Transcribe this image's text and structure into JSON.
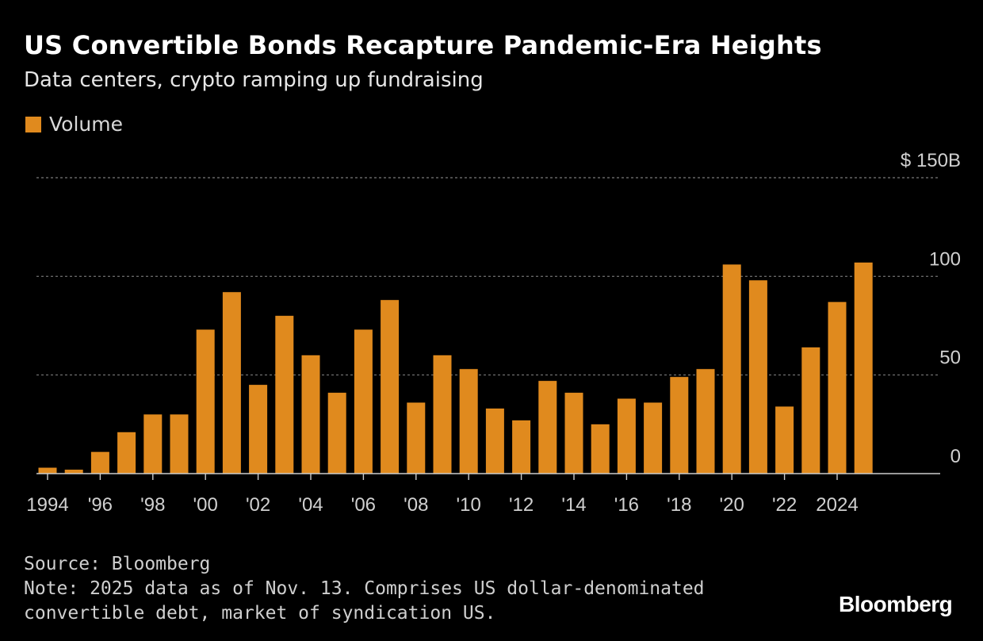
{
  "header": {
    "title": "US Convertible Bonds Recapture Pandemic-Era Heights",
    "subtitle": "Data centers, crypto ramping up fundraising"
  },
  "legend": {
    "label": "Volume"
  },
  "footer": {
    "source": "Source: Bloomberg",
    "note_line1": "Note: 2025 data as of Nov. 13. Comprises US dollar-denominated",
    "note_line2": "convertible debt, market of syndication US.",
    "brand": "Bloomberg"
  },
  "colors": {
    "bar": "#e08a1e",
    "background": "#000000",
    "grid": "#7a7a7a",
    "axis": "#cccccc"
  },
  "chart_data": {
    "type": "bar",
    "categories": [
      1994,
      1995,
      1996,
      1997,
      1998,
      1999,
      2000,
      2001,
      2002,
      2003,
      2004,
      2005,
      2006,
      2007,
      2008,
      2009,
      2010,
      2011,
      2012,
      2013,
      2014,
      2015,
      2016,
      2017,
      2018,
      2019,
      2020,
      2021,
      2022,
      2023,
      2024,
      2025
    ],
    "series": [
      {
        "name": "Volume",
        "values": [
          3,
          2,
          11,
          21,
          30,
          30,
          73,
          92,
          45,
          80,
          60,
          41,
          73,
          88,
          36,
          60,
          53,
          33,
          27,
          47,
          41,
          25,
          38,
          36,
          49,
          53,
          106,
          98,
          34,
          64,
          87,
          107
        ]
      }
    ],
    "ylim": [
      0,
      150
    ],
    "yticks": [
      {
        "value": 0,
        "label": "0"
      },
      {
        "value": 50,
        "label": "50"
      },
      {
        "value": 100,
        "label": "100"
      },
      {
        "value": 150,
        "label": "$ 150B"
      }
    ],
    "xticks": [
      {
        "year": 1994,
        "label": "1994"
      },
      {
        "year": 1996,
        "label": "'96"
      },
      {
        "year": 1998,
        "label": "'98"
      },
      {
        "year": 2000,
        "label": "'00"
      },
      {
        "year": 2002,
        "label": "'02"
      },
      {
        "year": 2004,
        "label": "'04"
      },
      {
        "year": 2006,
        "label": "'06"
      },
      {
        "year": 2008,
        "label": "'08"
      },
      {
        "year": 2010,
        "label": "'10"
      },
      {
        "year": 2012,
        "label": "'12"
      },
      {
        "year": 2014,
        "label": "'14"
      },
      {
        "year": 2016,
        "label": "'16"
      },
      {
        "year": 2018,
        "label": "'18"
      },
      {
        "year": 2020,
        "label": "'20"
      },
      {
        "year": 2022,
        "label": "'22"
      },
      {
        "year": 2024,
        "label": "2024"
      }
    ],
    "grid": true,
    "legend_position": "top-left"
  }
}
